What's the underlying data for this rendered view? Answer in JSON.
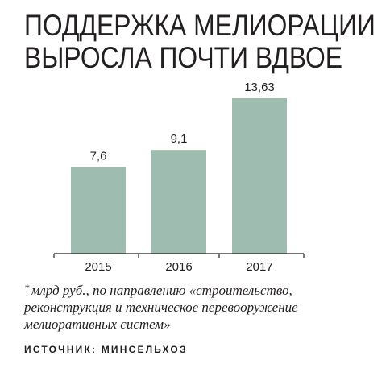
{
  "title_line1": "ПОДДЕРЖКА МЕЛИОРАЦИИ",
  "title_line2": "ВЫРОСЛА ПОЧТИ ВДВОЕ",
  "colors": {
    "bar": "#9ebcb0",
    "text": "#231f20",
    "axis": "#231f20"
  },
  "chart_data": {
    "type": "bar",
    "categories": [
      "2015",
      "2016",
      "2017"
    ],
    "values": [
      7.6,
      9.1,
      13.63
    ],
    "value_labels": [
      "7,6",
      "9,1",
      "13,63"
    ],
    "title": "",
    "xlabel": "",
    "ylabel": "",
    "ylim": [
      0,
      13.63
    ]
  },
  "footnote_marker": "*",
  "footnote": "млрд руб., по направлению «строительство, реконструкция и техническое перевооружение мелиоративных систем»",
  "source": "ИСТОЧНИК: МИНСЕЛЬХОЗ"
}
